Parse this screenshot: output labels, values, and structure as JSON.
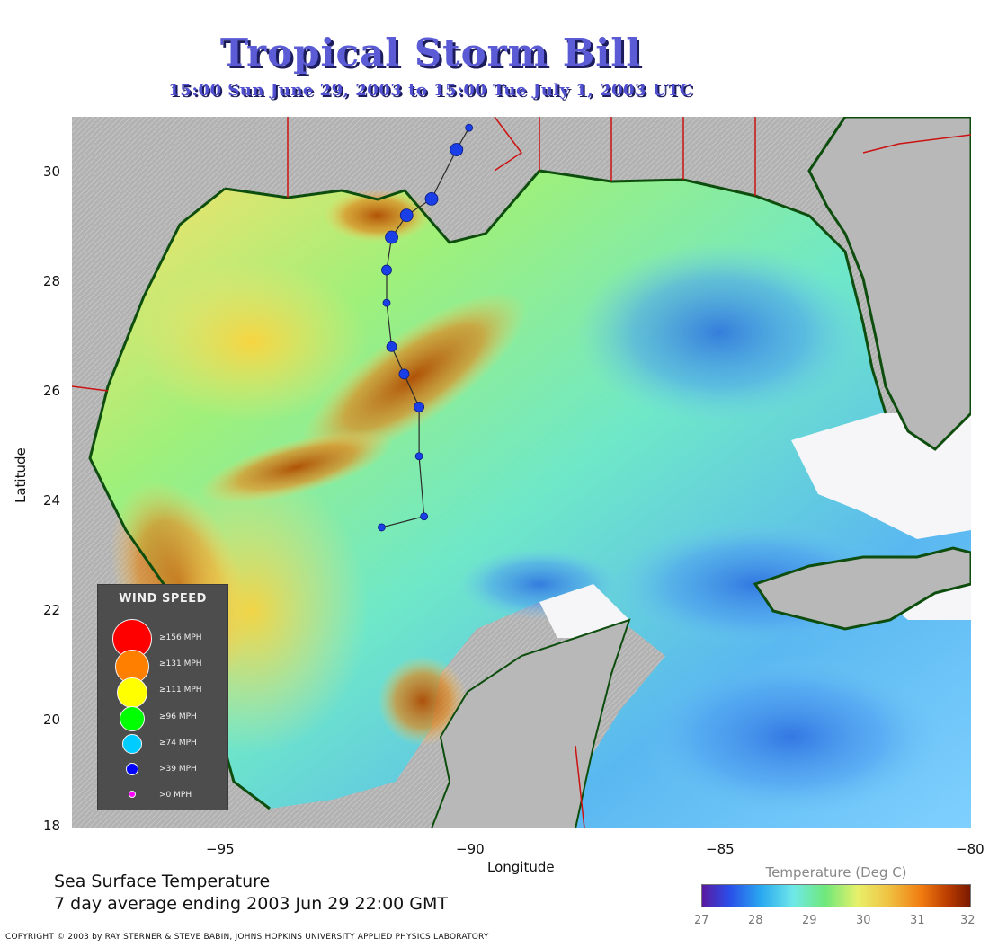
{
  "header": {
    "title": "Tropical Storm Bill",
    "subtitle": "15:00 Sun June 29, 2003 to 15:00 Tue July  1, 2003  UTC"
  },
  "map": {
    "lon_range": [
      -98,
      -80
    ],
    "lat_range": [
      18,
      31
    ],
    "x_ticks": [
      "−95",
      "−90",
      "−85",
      "−80"
    ],
    "y_ticks": [
      "30",
      "28",
      "26",
      "24",
      "22",
      "20",
      "18"
    ],
    "xlabel": "Longitude",
    "ylabel": "Latitude",
    "colors": {
      "land": "#b4b4b4",
      "border": "#cc1111",
      "coast": "#0d4d0d",
      "track": "#2a2a2a",
      "storm": "#1a3fe6"
    }
  },
  "storm_track": [
    {
      "lon": -91.8,
      "lat": 23.5,
      "size": "small"
    },
    {
      "lon": -90.95,
      "lat": 23.7,
      "size": "small"
    },
    {
      "lon": -91.05,
      "lat": 24.8,
      "size": "small"
    },
    {
      "lon": -91.05,
      "lat": 25.7,
      "size": "medium"
    },
    {
      "lon": -91.35,
      "lat": 26.3,
      "size": "medium"
    },
    {
      "lon": -91.6,
      "lat": 26.8,
      "size": "medium"
    },
    {
      "lon": -91.7,
      "lat": 27.6,
      "size": "small"
    },
    {
      "lon": -91.7,
      "lat": 28.2,
      "size": "medium"
    },
    {
      "lon": -91.6,
      "lat": 28.8,
      "size": "large"
    },
    {
      "lon": -91.3,
      "lat": 29.2,
      "size": "large"
    },
    {
      "lon": -90.8,
      "lat": 29.5,
      "size": "large"
    },
    {
      "lon": -90.3,
      "lat": 30.4,
      "size": "large"
    },
    {
      "lon": -90.05,
      "lat": 30.8,
      "size": "small"
    }
  ],
  "footer": {
    "sst_line1": "Sea Surface Temperature",
    "sst_line2": "7 day average ending 2003 Jun 29 22:00 GMT",
    "copyright": "COPYRIGHT © 2003 by RAY STERNER & STEVE BABIN, JOHNS HOPKINS UNIVERSITY APPLIED PHYSICS LABORATORY"
  },
  "colorbar": {
    "title": "Temperature (Deg C)",
    "ticks": [
      "27",
      "28",
      "29",
      "30",
      "31",
      "32"
    ],
    "range": [
      27,
      32
    ]
  },
  "legend": {
    "title": "WIND SPEED",
    "items": [
      {
        "label": "≥156 MPH",
        "color": "#ff0000"
      },
      {
        "label": "≥131 MPH",
        "color": "#ff7f00"
      },
      {
        "label": "≥111 MPH",
        "color": "#ffff00"
      },
      {
        "label": "≥96 MPH",
        "color": "#00ff00"
      },
      {
        "label": "≥74 MPH",
        "color": "#00ccff"
      },
      {
        "label": ">39 MPH",
        "color": "#0000ff"
      },
      {
        "label": ">0 MPH",
        "color": "#ff00ff"
      }
    ]
  }
}
